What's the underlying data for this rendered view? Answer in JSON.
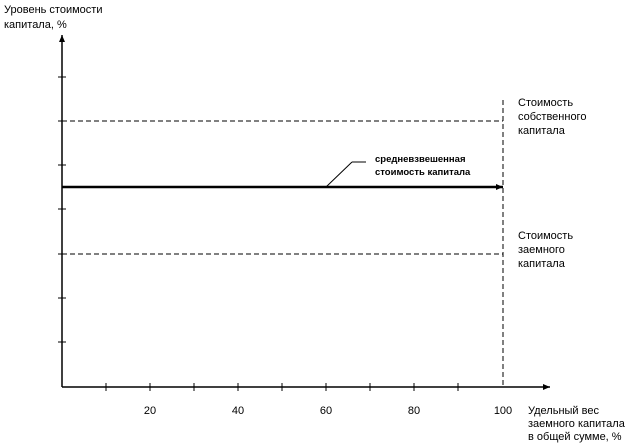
{
  "y_axis_label": [
    "Уровень стоимости",
    "капитала, %"
  ],
  "x_axis_label": [
    "Удельный вес",
    "заемного капитала",
    "в общей сумме, %"
  ],
  "x_tick_labels": [
    20,
    40,
    60,
    80,
    100
  ],
  "equity_label": [
    "Стоимость",
    "собственного",
    "капитала"
  ],
  "debt_label": [
    "Стоимость",
    "заемного",
    "капитала"
  ],
  "wacc_label": [
    "средневзвешенная",
    "стоимость капитала"
  ]
}
